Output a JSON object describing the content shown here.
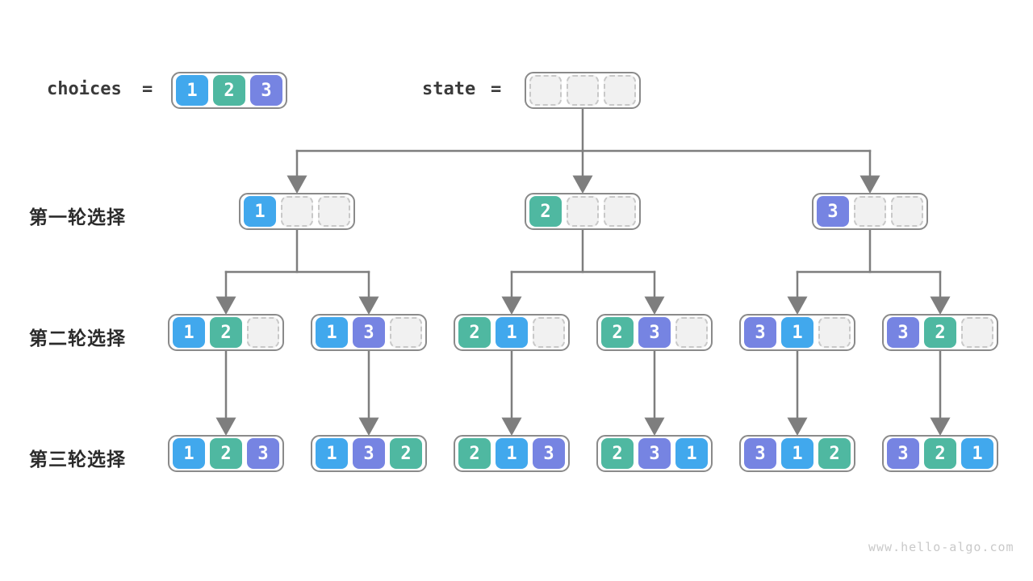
{
  "header": {
    "choices_label": "choices",
    "state_label": "state",
    "equals": "=",
    "choices_values": [
      1,
      2,
      3
    ],
    "state_values": [
      null,
      null,
      null
    ]
  },
  "rows": [
    {
      "label": "第一轮选择",
      "nodes": [
        {
          "slots": [
            1,
            null,
            null
          ]
        },
        {
          "slots": [
            2,
            null,
            null
          ]
        },
        {
          "slots": [
            3,
            null,
            null
          ]
        }
      ]
    },
    {
      "label": "第二轮选择",
      "nodes": [
        {
          "slots": [
            1,
            2,
            null
          ]
        },
        {
          "slots": [
            1,
            3,
            null
          ]
        },
        {
          "slots": [
            2,
            1,
            null
          ]
        },
        {
          "slots": [
            2,
            3,
            null
          ]
        },
        {
          "slots": [
            3,
            1,
            null
          ]
        },
        {
          "slots": [
            3,
            2,
            null
          ]
        }
      ]
    },
    {
      "label": "第三轮选择",
      "nodes": [
        {
          "slots": [
            1,
            2,
            3
          ]
        },
        {
          "slots": [
            1,
            3,
            2
          ]
        },
        {
          "slots": [
            2,
            1,
            3
          ]
        },
        {
          "slots": [
            2,
            3,
            1
          ]
        },
        {
          "slots": [
            3,
            1,
            2
          ]
        },
        {
          "slots": [
            3,
            2,
            1
          ]
        }
      ]
    }
  ],
  "watermark": "www.hello-algo.com",
  "colors": {
    "value_1": "#41a8ed",
    "value_2": "#4fb8a1",
    "value_3": "#7684e2",
    "arrow": "#7e7e7e",
    "box_border": "#8a8a8a",
    "empty_fill": "#f1f1f1",
    "empty_border": "#c8c8c8",
    "label_text": "#2b2b2b",
    "watermark_text": "#c9c9c9"
  }
}
